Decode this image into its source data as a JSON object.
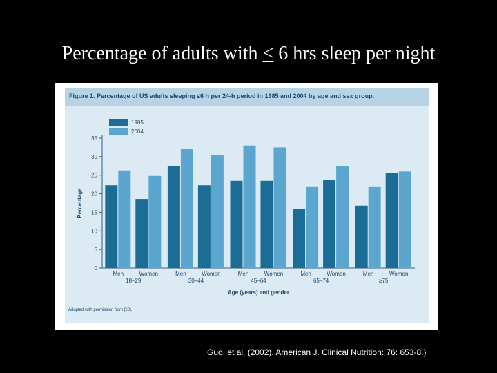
{
  "slide": {
    "title_before": "Percentage of adults with",
    "title_leq": "<",
    "title_after": "6 hrs sleep per night",
    "citation": "Guo, et al. (2002). American J. Clinical Nutrition: 76: 653-8.)"
  },
  "figure": {
    "caption": "Figure 1. Percentage of US adults sleeping ≤6 h per 24-h period in 1985 and 2004 by age and sex group.",
    "footnote": "Adapted with permission from [28]."
  },
  "colors": {
    "series_1985": "#1b6d96",
    "series_2004": "#5aa6cf",
    "axis": "#2f5f83",
    "text": "#1d4a6e"
  },
  "chart_data": {
    "type": "bar",
    "title": "",
    "xlabel": "Age (years) and gender",
    "ylabel": "Percentage",
    "ylim": [
      0,
      35
    ],
    "yticks": [
      0,
      5,
      10,
      15,
      20,
      25,
      30,
      35
    ],
    "legend_position": "top-left",
    "groups": [
      {
        "label": "18–29",
        "categories": [
          "Men",
          "Women"
        ]
      },
      {
        "label": "30–44",
        "categories": [
          "Men",
          "Women"
        ]
      },
      {
        "label": "45–64",
        "categories": [
          "Men",
          "Women"
        ]
      },
      {
        "label": "65–74",
        "categories": [
          "Men",
          "Women"
        ]
      },
      {
        "label": "≥75",
        "categories": [
          "Men",
          "Women"
        ]
      }
    ],
    "series": [
      {
        "name": "1985",
        "values": [
          22.3,
          18.6,
          27.5,
          22.3,
          23.5,
          23.5,
          16.0,
          23.8,
          16.8,
          25.6
        ]
      },
      {
        "name": "2004",
        "values": [
          26.3,
          24.8,
          32.2,
          30.5,
          33.0,
          32.5,
          22.0,
          27.5,
          22.0,
          26.0
        ]
      }
    ]
  }
}
